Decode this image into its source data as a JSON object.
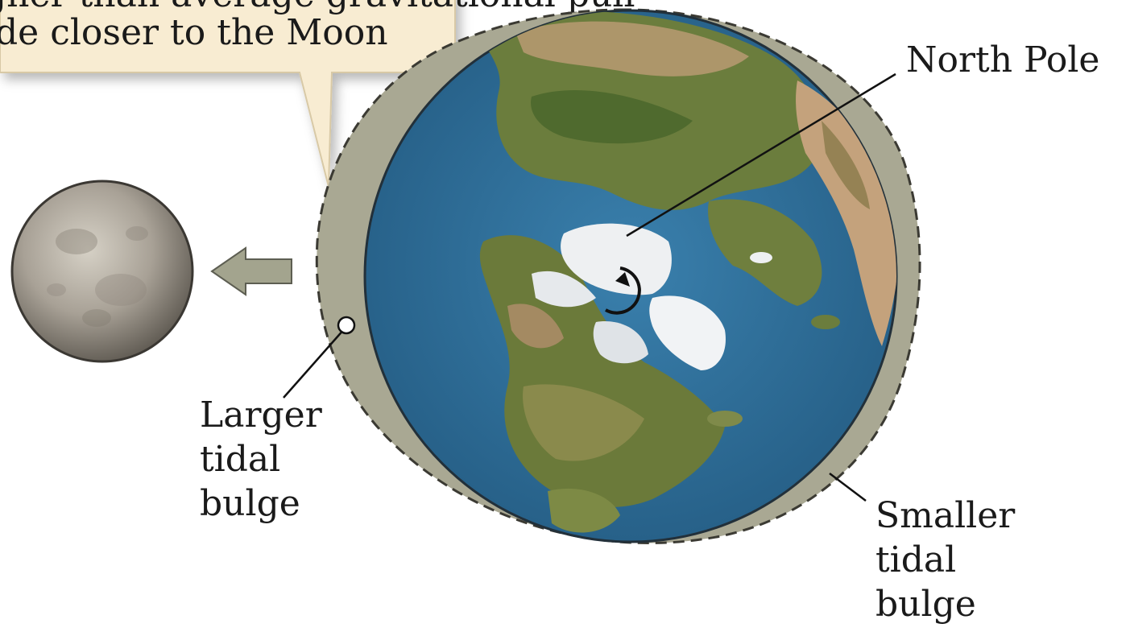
{
  "callout": {
    "line1": "gher than average gravitational pull",
    "line2": "de closer to the Moon"
  },
  "labels": {
    "north_pole": "North Pole",
    "larger_bulge": [
      "Larger",
      "tidal",
      "bulge"
    ],
    "smaller_bulge": [
      "Smaller",
      "tidal",
      "bulge"
    ]
  },
  "colors": {
    "ocean": "#2f6f9a",
    "land_green": "#5e7a38",
    "land_tan": "#b89a72",
    "ice": "#eef0f2",
    "bulge": "#a9a893",
    "callout_fill": "#f8ecd2",
    "arrow": "#a3a48e",
    "moon": "#9a9388"
  },
  "icons": {
    "moon": "moon-icon",
    "earth": "earth-globe-icon",
    "arrow": "arrow-left-icon",
    "rotation": "rotation-arrow-icon",
    "marker": "point-marker-icon"
  }
}
